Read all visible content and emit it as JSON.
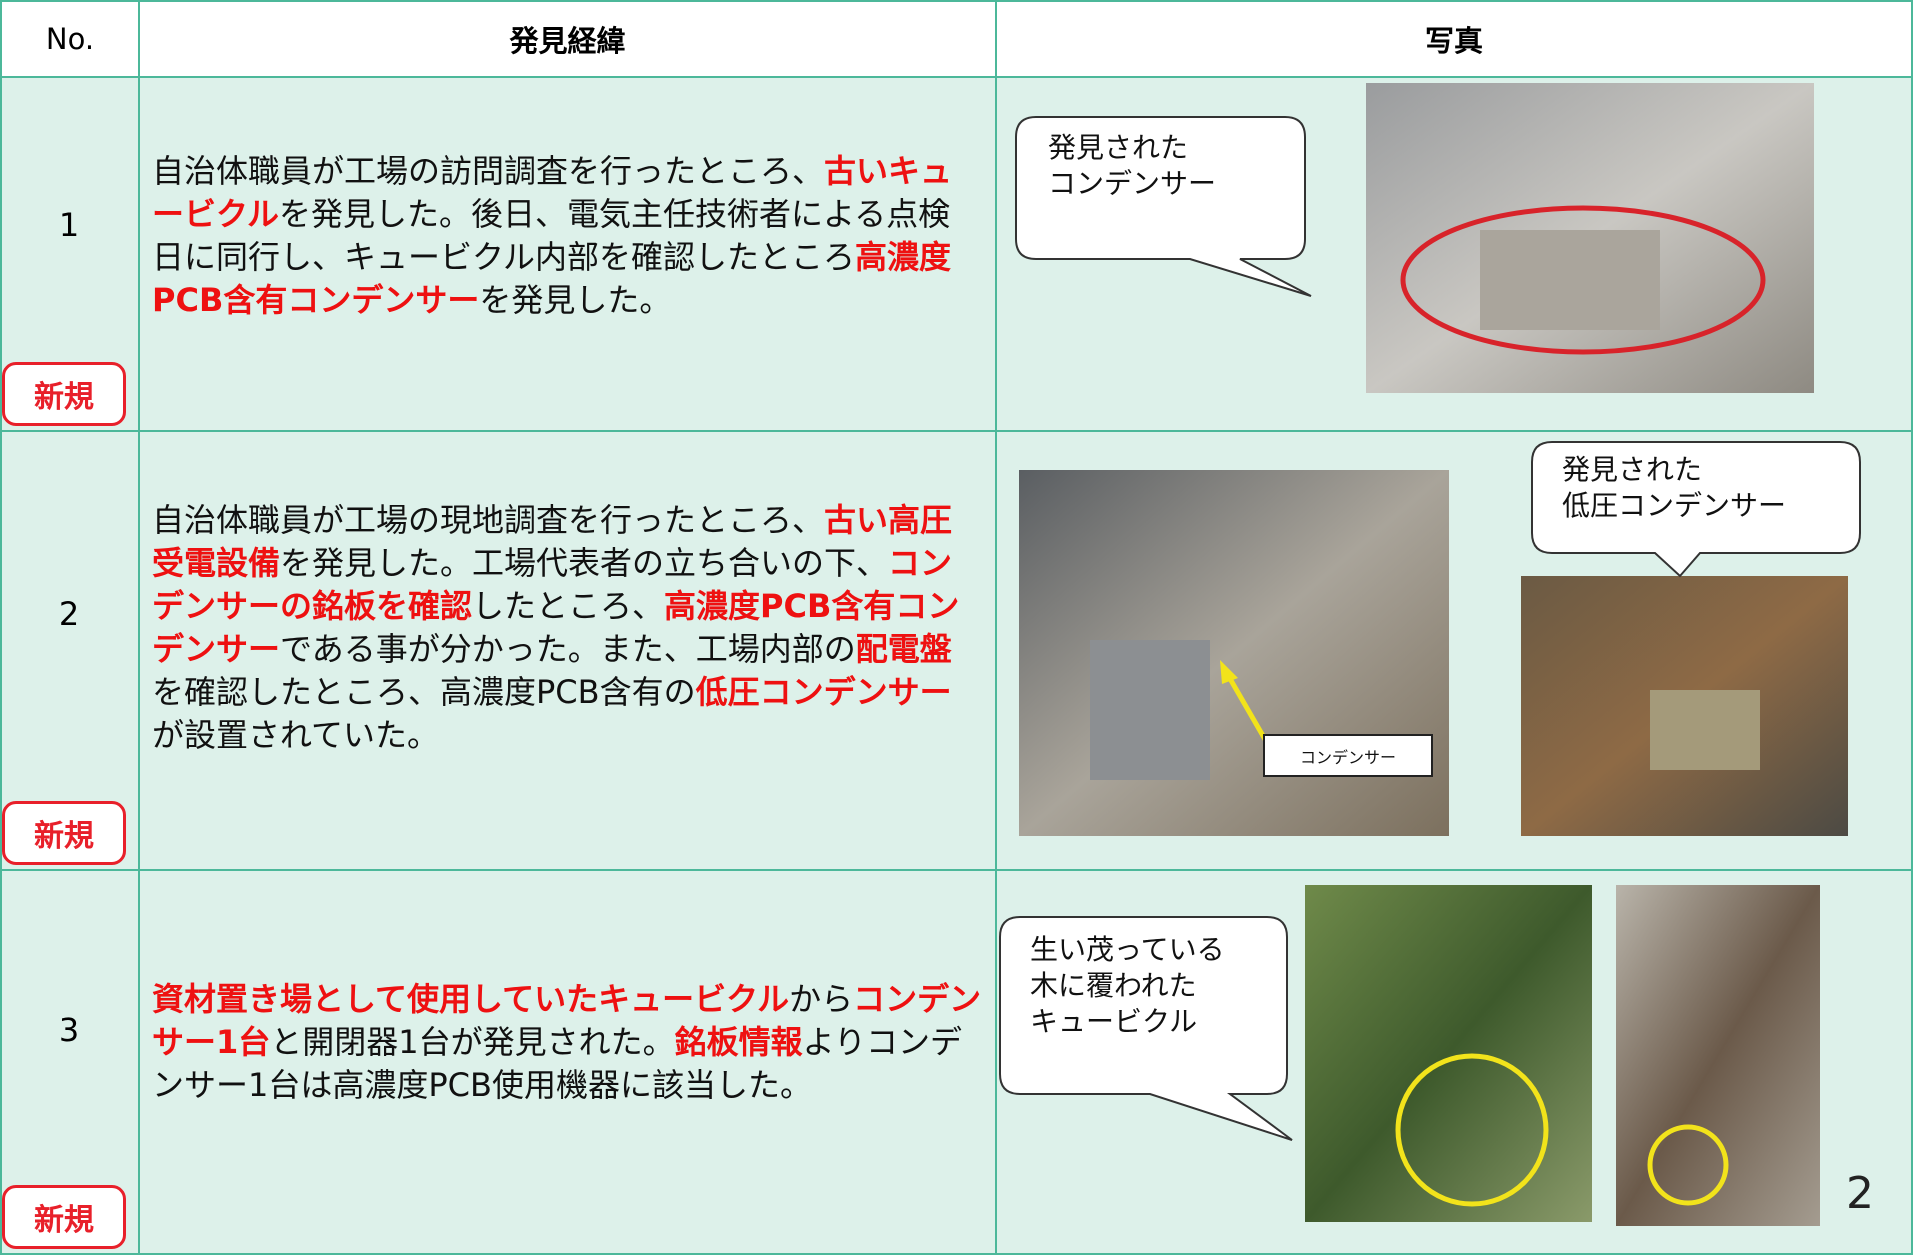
{
  "header": {
    "no": "No.",
    "history": "発見経緯",
    "photo": "写真"
  },
  "rows": [
    {
      "no": "1",
      "badge": "新規",
      "description": [
        {
          "text": "自治体職員が工場の訪問調査を行ったところ、",
          "bold": false
        },
        {
          "text": "古いキュービクル",
          "bold": true
        },
        {
          "text": "を発見した。後日、電気主任技術者による点検日に同行し、キュービクル内部を確認したところ",
          "bold": false
        },
        {
          "text": "高濃度PCB含有コンデンサー",
          "bold": true
        },
        {
          "text": "を発見した。",
          "bold": false
        }
      ],
      "callouts": [
        "発見された\nコンデンサー"
      ]
    },
    {
      "no": "2",
      "badge": "新規",
      "description": [
        {
          "text": "自治体職員が工場の現地調査を行ったところ、",
          "bold": false
        },
        {
          "text": "古い高圧受電設備",
          "bold": true
        },
        {
          "text": "を発見した。工場代表者の立ち合いの下、",
          "bold": false
        },
        {
          "text": "コンデンサーの銘板を確認",
          "bold": true
        },
        {
          "text": "したところ、",
          "bold": false
        },
        {
          "text": "高濃度PCB含有コンデンサー",
          "bold": true
        },
        {
          "text": "である事が分かった。また、工場内部の",
          "bold": false
        },
        {
          "text": "配電盤",
          "bold": true
        },
        {
          "text": "を確認したところ、高濃度PCB含有の",
          "bold": false
        },
        {
          "text": "低圧コンデンサー",
          "bold": true
        },
        {
          "text": "が設置されていた。",
          "bold": false
        }
      ],
      "callouts": [
        "発見された\n低圧コンデンサー"
      ],
      "photo_label": "コンデンサー"
    },
    {
      "no": "3",
      "badge": "新規",
      "description": [
        {
          "text": "資材置き場として使用していたキュービクル",
          "bold": true
        },
        {
          "text": "から",
          "bold": false
        },
        {
          "text": "コンデンサー1台",
          "bold": true
        },
        {
          "text": "と開閉器1台が発見された。",
          "bold": false
        },
        {
          "text": "銘板情報",
          "bold": true
        },
        {
          "text": "よりコンデンサー1台は高濃度PCB使用機器に該当した。",
          "bold": false
        }
      ],
      "callouts": [
        "生い茂っている\n木に覆われた\nキュービクル"
      ]
    }
  ],
  "page_number": "2"
}
